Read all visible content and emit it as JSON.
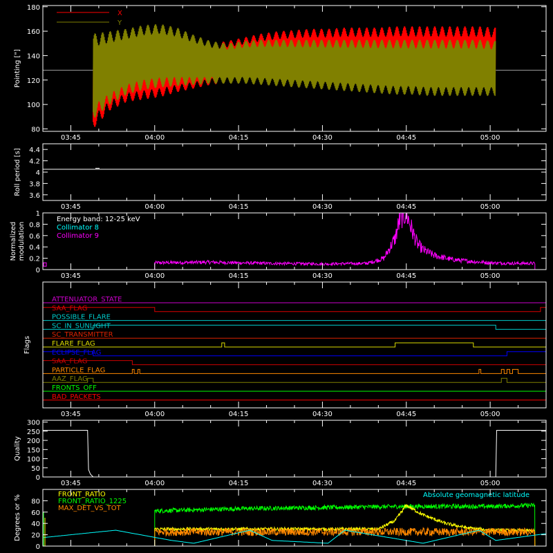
{
  "chart_data": [
    {
      "type": "line",
      "ylabel": "Pointing [\"]",
      "ylim": [
        78,
        181
      ],
      "yticks": [
        80,
        100,
        120,
        140,
        160,
        180
      ],
      "xticks": [
        "03:45",
        "04:00",
        "04:15",
        "04:30",
        "04:45",
        "05:00"
      ],
      "legend": [
        {
          "name": "X",
          "color": "#ff0000"
        },
        {
          "name": "Y",
          "color": "#808000"
        }
      ],
      "reference_level": 128,
      "data_start": "03:49",
      "data_end": "05:01",
      "series": [
        {
          "name": "X",
          "color": "#ff0000",
          "x": [
            "03:49",
            "03:52",
            "03:55",
            "03:58",
            "04:01",
            "04:04",
            "04:07",
            "04:10",
            "04:13",
            "04:16",
            "04:19",
            "04:22",
            "04:25",
            "04:28",
            "04:31",
            "04:34",
            "04:37",
            "04:40",
            "04:43",
            "04:46",
            "04:49",
            "04:52",
            "04:55",
            "04:58",
            "05:01"
          ],
          "upper": [
            150,
            148,
            150,
            152,
            153,
            150,
            148,
            150,
            152,
            155,
            158,
            160,
            161,
            162,
            162,
            163,
            163,
            163,
            164,
            164,
            164,
            164,
            164,
            164,
            163
          ],
          "lower": [
            80,
            95,
            102,
            104,
            106,
            110,
            113,
            116,
            118,
            118,
            118,
            118,
            118,
            117,
            116,
            115,
            114,
            113,
            112,
            111,
            110,
            110,
            110,
            110,
            110
          ]
        },
        {
          "name": "Y",
          "color": "#808000",
          "x": [
            "03:49",
            "03:52",
            "03:55",
            "03:58",
            "04:01",
            "04:04",
            "04:07",
            "04:10",
            "04:13",
            "04:16",
            "04:19",
            "04:22",
            "04:25",
            "04:28",
            "04:31",
            "04:34",
            "04:37",
            "04:40",
            "04:43",
            "04:46",
            "04:49",
            "04:52",
            "04:55",
            "04:58",
            "05:01"
          ],
          "upper": [
            158,
            160,
            162,
            165,
            166,
            163,
            157,
            152,
            150,
            152,
            153,
            153,
            153,
            153,
            153,
            153,
            153,
            153,
            153,
            153,
            153,
            153,
            153,
            153,
            152
          ],
          "lower": [
            88,
            100,
            108,
            112,
            114,
            115,
            116,
            117,
            117,
            117,
            116,
            115,
            114,
            113,
            112,
            111,
            110,
            109,
            108,
            108,
            107,
            107,
            107,
            107,
            107
          ]
        }
      ]
    },
    {
      "type": "line",
      "ylabel": "Roll period [s]",
      "ylim": [
        3.5,
        4.5
      ],
      "yticks": [
        3.6,
        3.8,
        4.0,
        4.2,
        4.4
      ],
      "xticks": [
        "03:45",
        "04:00",
        "04:15",
        "04:30",
        "04:45",
        "05:00"
      ],
      "series": [
        {
          "name": "",
          "color": "#ffffff",
          "value": 4.05
        }
      ]
    },
    {
      "type": "line",
      "ylabel": "Normalized modulation",
      "ylim": [
        0,
        1
      ],
      "yticks": [
        0.0,
        0.2,
        0.4,
        0.6,
        0.8,
        1.0
      ],
      "xticks": [
        "03:45",
        "04:00",
        "04:15",
        "04:30",
        "04:45",
        "05:00"
      ],
      "legend_title": "Energy band: 12-25 keV",
      "legend": [
        {
          "name": "Collimator 8",
          "color": "#00ffff"
        },
        {
          "name": "Collimator 9",
          "color": "#ff00ff"
        }
      ],
      "series": [
        {
          "name": "Collimator 8",
          "color": "#00ffff",
          "x": [
            "03:40",
            "05:10"
          ],
          "y": [
            0.0,
            0.0
          ]
        },
        {
          "name": "Collimator 9",
          "color": "#ff00ff",
          "x": [
            "04:00",
            "04:10",
            "04:20",
            "04:30",
            "04:38",
            "04:41",
            "04:43",
            "04:44",
            "04:45",
            "04:46",
            "04:47",
            "04:48",
            "04:50",
            "04:53",
            "04:57",
            "05:00",
            "05:04",
            "05:08"
          ],
          "y": [
            0.12,
            0.13,
            0.11,
            0.1,
            0.11,
            0.2,
            0.55,
            0.95,
            1.0,
            0.7,
            0.45,
            0.35,
            0.25,
            0.18,
            0.14,
            0.12,
            0.11,
            0.11
          ]
        }
      ]
    },
    {
      "type": "line",
      "ylabel": "Flags",
      "xticks": [
        "03:45",
        "04:00",
        "04:15",
        "04:30",
        "04:45",
        "05:00"
      ],
      "flags": [
        {
          "name": "ATTENUATOR_STATE",
          "color": "#cc00cc",
          "on": []
        },
        {
          "name": "SAA_FLAG",
          "color": "#dd0000",
          "on": [
            [
              "03:40",
              "04:00"
            ],
            [
              "05:09",
              "05:10"
            ]
          ]
        },
        {
          "name": "POSSIBLE_FLARE",
          "color": "#00cccc",
          "on": []
        },
        {
          "name": "SC_IN_SUNLIGHT",
          "color": "#00cccc",
          "on": [
            [
              "03:49",
              "05:01"
            ]
          ]
        },
        {
          "name": "SC_TRANSMITTER",
          "color": "#dd2200",
          "on": []
        },
        {
          "name": "FLARE_FLAG",
          "color": "#dddd00",
          "on": [
            [
              "04:12",
              "04:12:30"
            ],
            [
              "04:43",
              "04:57"
            ]
          ]
        },
        {
          "name": "ECLIPSE_FLAG",
          "color": "#0000ff",
          "on": [
            [
              "03:40",
              "03:49"
            ],
            [
              "05:03",
              "05:10"
            ]
          ]
        },
        {
          "name": "SAA_FLAG",
          "color": "#cc0000",
          "on": [
            [
              "03:40",
              "03:56"
            ]
          ]
        },
        {
          "name": "PARTICLE_FLAG",
          "color": "#ff8800",
          "on": [
            [
              "03:56",
              "03:56:20"
            ],
            [
              "03:57",
              "03:57:20"
            ],
            [
              "04:58",
              "04:58:20"
            ],
            [
              "05:02",
              "05:02:30"
            ],
            [
              "05:03",
              "05:03:30"
            ],
            [
              "05:04",
              "05:05"
            ]
          ]
        },
        {
          "name": "AAZ_FLAG",
          "color": "#808000",
          "on": [
            [
              "03:48",
              "03:49"
            ],
            [
              "05:02",
              "05:03"
            ]
          ]
        },
        {
          "name": "FRONTS_OFF",
          "color": "#00ff00",
          "on": []
        },
        {
          "name": "BAD_PACKETS",
          "color": "#ff0000",
          "on": []
        }
      ]
    },
    {
      "type": "line",
      "ylabel": "Quality",
      "ylim": [
        0,
        310
      ],
      "yticks": [
        0,
        50,
        100,
        150,
        200,
        250,
        300
      ],
      "xticks": [
        "03:45",
        "04:00",
        "04:15",
        "04:30",
        "04:45",
        "05:00"
      ],
      "series": [
        {
          "name": "",
          "color": "#ffffff",
          "x": [
            "03:40",
            "03:48",
            "03:48:10",
            "03:48:30",
            "03:49",
            "05:01",
            "05:01:10",
            "05:10"
          ],
          "y": [
            255,
            255,
            40,
            15,
            0,
            0,
            255,
            255
          ]
        }
      ]
    },
    {
      "type": "line",
      "ylabel": "Degrees or %",
      "ylim": [
        0,
        100
      ],
      "yticks": [
        0,
        20,
        40,
        60,
        80
      ],
      "legend": [
        {
          "name": "FRONT_RATIO",
          "color": "#ffff00"
        },
        {
          "name": "FRONT_RATIO_1225",
          "color": "#00ff00"
        },
        {
          "name": "MAX_DET_VS_TOT",
          "color": "#ff8800"
        }
      ],
      "annotation": {
        "text": "Absolute geomagnetic latitude",
        "color": "#00ffff"
      },
      "series": [
        {
          "name": "FRONT_RATIO_1225",
          "color": "#00ff00",
          "x": [
            "04:00",
            "04:15",
            "04:30",
            "04:45",
            "05:00",
            "05:08"
          ],
          "y": [
            62,
            66,
            68,
            70,
            70,
            72
          ]
        },
        {
          "name": "FRONT_RATIO",
          "color": "#ffff00",
          "x": [
            "04:00",
            "04:15",
            "04:30",
            "04:40",
            "04:43",
            "04:45",
            "04:48",
            "04:52",
            "04:56",
            "05:00",
            "05:08"
          ],
          "y": [
            30,
            30,
            30,
            30,
            45,
            72,
            55,
            40,
            32,
            28,
            27
          ]
        },
        {
          "name": "MAX_DET_VS_TOT",
          "color": "#ff8800",
          "x": [
            "04:00",
            "05:08"
          ],
          "y": [
            25,
            25
          ]
        },
        {
          "name": "Absolute geomagnetic latitude",
          "color": "#00ffff",
          "x": [
            "03:40",
            "03:53",
            "04:03",
            "04:07",
            "04:17",
            "04:21",
            "04:31",
            "04:34",
            "04:45",
            "04:48",
            "04:58",
            "05:01",
            "05:10"
          ],
          "y": [
            15,
            28,
            10,
            5,
            28,
            10,
            5,
            28,
            10,
            5,
            28,
            10,
            22
          ]
        }
      ]
    }
  ]
}
